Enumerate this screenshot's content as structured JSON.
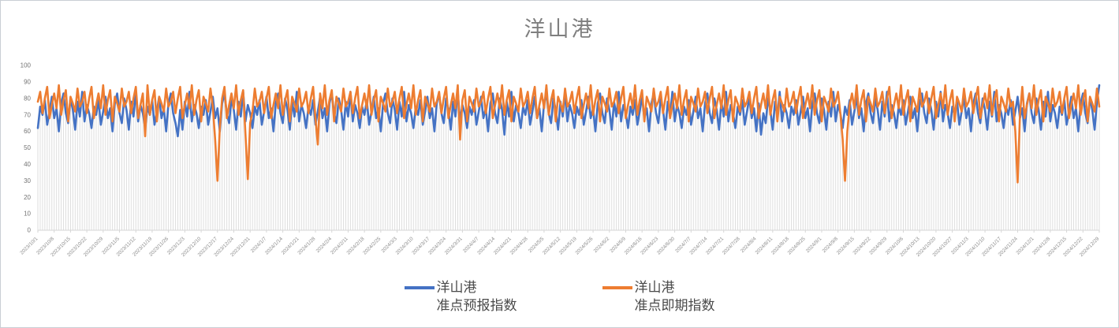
{
  "chart_data": {
    "type": "line",
    "title": "洋山港",
    "xlabel": "",
    "ylabel": "",
    "ylim": [
      0,
      100
    ],
    "yticks": [
      0,
      10,
      20,
      30,
      40,
      50,
      60,
      70,
      80,
      90,
      100
    ],
    "grid": false,
    "legend_position": "bottom",
    "x_start_date": "2023/10/1",
    "x_end_date": "2024/12/29",
    "x_frequency": "daily",
    "x_tick_labels": [
      "2023/10/1",
      "2023/10/8",
      "2023/10/15",
      "2023/10/22",
      "2023/10/29",
      "2023/11/5",
      "2023/11/12",
      "2023/11/19",
      "2023/11/26",
      "2023/12/3",
      "2023/12/10",
      "2023/12/17",
      "2023/12/24",
      "2023/12/31",
      "2024/1/7",
      "2024/1/14",
      "2024/1/21",
      "2024/1/28",
      "2024/2/4",
      "2024/2/11",
      "2024/2/18",
      "2024/2/25",
      "2024/3/3",
      "2024/3/10",
      "2024/3/17",
      "2024/3/24",
      "2024/3/31",
      "2024/4/7",
      "2024/4/14",
      "2024/4/21",
      "2024/4/28",
      "2024/5/5",
      "2024/5/12",
      "2024/5/19",
      "2024/5/26",
      "2024/6/2",
      "2024/6/9",
      "2024/6/16",
      "2024/6/23",
      "2024/6/30",
      "2024/7/7",
      "2024/7/14",
      "2024/7/21",
      "2024/7/28",
      "2024/8/4",
      "2024/8/11",
      "2024/8/18",
      "2024/8/25",
      "2024/9/1",
      "2024/9/8",
      "2024/9/15",
      "2024/9/22",
      "2024/9/29",
      "2024/10/6",
      "2024/10/13",
      "2024/10/20",
      "2024/10/27",
      "2024/11/3",
      "2024/11/10",
      "2024/11/17",
      "2024/11/24",
      "2024/12/1",
      "2024/12/8",
      "2024/12/15",
      "2024/12/22",
      "2024/12/29"
    ],
    "x_tick_interval_days": 7,
    "series": [
      {
        "name": "洋山港准点预报指数",
        "color": "#4472C4",
        "values": [
          62,
          75,
          70,
          79,
          64,
          72,
          81,
          68,
          74,
          60,
          77,
          83,
          71,
          65,
          80,
          73,
          61,
          78,
          69,
          84,
          66,
          76,
          71,
          62,
          75,
          70,
          79,
          64,
          72,
          81,
          68,
          74,
          60,
          77,
          83,
          71,
          65,
          80,
          73,
          61,
          78,
          69,
          84,
          66,
          76,
          71,
          62,
          75,
          70,
          79,
          64,
          72,
          81,
          68,
          74,
          60,
          77,
          83,
          71,
          65,
          57,
          73,
          61,
          78,
          69,
          84,
          66,
          76,
          71,
          62,
          75,
          70,
          79,
          64,
          72,
          81,
          68,
          74,
          60,
          77,
          83,
          71,
          65,
          80,
          73,
          61,
          78,
          69,
          84,
          66,
          76,
          71,
          62,
          75,
          70,
          79,
          64,
          72,
          81,
          68,
          74,
          60,
          77,
          83,
          71,
          65,
          80,
          73,
          61,
          78,
          69,
          84,
          66,
          76,
          71,
          62,
          75,
          70,
          79,
          64,
          72,
          81,
          68,
          74,
          60,
          77,
          83,
          71,
          65,
          80,
          73,
          61,
          78,
          69,
          84,
          66,
          76,
          71,
          62,
          75,
          70,
          79,
          64,
          72,
          81,
          68,
          74,
          60,
          77,
          83,
          71,
          65,
          80,
          73,
          61,
          78,
          69,
          84,
          66,
          76,
          71,
          62,
          75,
          70,
          79,
          64,
          72,
          81,
          68,
          74,
          60,
          77,
          83,
          71,
          65,
          80,
          73,
          61,
          78,
          69,
          84,
          66,
          76,
          71,
          62,
          75,
          70,
          79,
          64,
          72,
          81,
          68,
          74,
          60,
          77,
          83,
          71,
          65,
          80,
          73,
          58,
          78,
          69,
          84,
          66,
          76,
          71,
          62,
          75,
          70,
          79,
          64,
          72,
          81,
          68,
          74,
          60,
          77,
          83,
          71,
          65,
          80,
          73,
          61,
          78,
          69,
          84,
          66,
          76,
          71,
          62,
          75,
          70,
          79,
          64,
          72,
          81,
          68,
          74,
          60,
          77,
          83,
          71,
          65,
          80,
          73,
          61,
          78,
          69,
          84,
          66,
          76,
          71,
          62,
          75,
          70,
          79,
          64,
          72,
          81,
          68,
          74,
          60,
          77,
          83,
          71,
          65,
          80,
          73,
          61,
          78,
          69,
          84,
          66,
          76,
          71,
          62,
          75,
          70,
          79,
          64,
          72,
          81,
          68,
          74,
          60,
          77,
          83,
          71,
          65,
          80,
          73,
          61,
          78,
          69,
          84,
          66,
          76,
          71,
          62,
          75,
          70,
          79,
          64,
          72,
          81,
          68,
          74,
          60,
          77,
          58,
          71,
          65,
          80,
          73,
          61,
          78,
          69,
          84,
          66,
          76,
          71,
          62,
          75,
          70,
          79,
          64,
          72,
          81,
          68,
          74,
          60,
          77,
          83,
          71,
          65,
          80,
          73,
          61,
          78,
          69,
          84,
          66,
          76,
          71,
          62,
          75,
          70,
          79,
          64,
          72,
          81,
          68,
          74,
          60,
          77,
          83,
          71,
          65,
          80,
          73,
          61,
          78,
          69,
          84,
          66,
          76,
          71,
          62,
          75,
          70,
          79,
          64,
          72,
          81,
          68,
          74,
          60,
          77,
          83,
          71,
          65,
          80,
          73,
          61,
          78,
          69,
          84,
          66,
          76,
          71,
          62,
          75,
          70,
          79,
          64,
          72,
          81,
          68,
          74,
          60,
          77,
          83,
          71,
          65,
          80,
          73,
          61,
          78,
          69,
          84,
          66,
          76,
          71,
          62,
          75,
          70,
          79,
          64,
          72,
          81,
          68,
          74,
          60,
          77,
          83,
          71,
          65,
          80,
          73,
          61,
          78,
          69,
          84,
          66,
          76,
          71,
          62,
          75,
          70,
          79,
          64,
          72,
          81,
          68,
          74,
          60,
          77,
          83,
          71,
          65,
          80,
          73,
          61,
          78,
          88
        ]
      },
      {
        "name": "洋山港准点即期指数",
        "color": "#ED7D31",
        "values": [
          78,
          84,
          71,
          80,
          87,
          68,
          76,
          83,
          74,
          88,
          70,
          79,
          85,
          66,
          81,
          77,
          72,
          86,
          75,
          78,
          84,
          71,
          80,
          87,
          68,
          76,
          83,
          74,
          88,
          70,
          79,
          85,
          66,
          81,
          77,
          72,
          86,
          75,
          78,
          84,
          71,
          80,
          87,
          68,
          76,
          83,
          57,
          88,
          70,
          79,
          85,
          66,
          81,
          77,
          72,
          86,
          75,
          78,
          84,
          71,
          80,
          87,
          68,
          76,
          83,
          74,
          88,
          70,
          79,
          85,
          66,
          81,
          77,
          72,
          86,
          75,
          55,
          30,
          62,
          80,
          87,
          68,
          76,
          83,
          74,
          88,
          70,
          79,
          85,
          58,
          31,
          65,
          72,
          86,
          75,
          78,
          84,
          71,
          80,
          87,
          68,
          76,
          83,
          74,
          88,
          70,
          79,
          85,
          66,
          81,
          77,
          72,
          86,
          75,
          78,
          84,
          71,
          80,
          87,
          68,
          52,
          83,
          74,
          88,
          70,
          79,
          85,
          66,
          81,
          77,
          72,
          86,
          75,
          78,
          84,
          71,
          80,
          87,
          68,
          76,
          83,
          74,
          88,
          70,
          79,
          85,
          66,
          81,
          77,
          72,
          86,
          75,
          78,
          84,
          71,
          80,
          87,
          68,
          76,
          83,
          74,
          88,
          70,
          79,
          85,
          66,
          81,
          77,
          72,
          86,
          75,
          78,
          84,
          71,
          80,
          87,
          68,
          76,
          83,
          74,
          88,
          55,
          79,
          85,
          66,
          81,
          77,
          72,
          86,
          75,
          78,
          84,
          71,
          80,
          87,
          68,
          76,
          83,
          74,
          88,
          70,
          79,
          85,
          66,
          81,
          77,
          72,
          86,
          75,
          78,
          84,
          71,
          80,
          87,
          68,
          76,
          83,
          74,
          88,
          70,
          79,
          85,
          66,
          81,
          77,
          72,
          86,
          75,
          78,
          84,
          71,
          80,
          87,
          68,
          76,
          83,
          74,
          88,
          70,
          79,
          85,
          66,
          81,
          77,
          72,
          86,
          75,
          78,
          84,
          71,
          80,
          87,
          68,
          76,
          83,
          74,
          88,
          70,
          79,
          85,
          66,
          81,
          77,
          72,
          86,
          75,
          78,
          84,
          71,
          80,
          87,
          68,
          76,
          83,
          74,
          88,
          70,
          79,
          85,
          66,
          81,
          77,
          72,
          86,
          75,
          78,
          84,
          71,
          80,
          87,
          68,
          76,
          83,
          74,
          88,
          70,
          79,
          85,
          66,
          81,
          77,
          72,
          86,
          75,
          78,
          84,
          71,
          80,
          87,
          68,
          76,
          83,
          74,
          88,
          70,
          79,
          85,
          66,
          81,
          77,
          72,
          86,
          75,
          78,
          84,
          71,
          80,
          87,
          68,
          76,
          83,
          74,
          88,
          70,
          79,
          85,
          66,
          81,
          77,
          72,
          86,
          75,
          78,
          84,
          71,
          55,
          30,
          60,
          76,
          83,
          74,
          88,
          70,
          79,
          85,
          66,
          81,
          77,
          72,
          86,
          75,
          78,
          84,
          71,
          80,
          87,
          68,
          76,
          83,
          74,
          88,
          70,
          79,
          85,
          66,
          81,
          77,
          72,
          86,
          75,
          78,
          84,
          71,
          80,
          87,
          68,
          76,
          83,
          74,
          88,
          70,
          79,
          85,
          66,
          81,
          77,
          72,
          86,
          75,
          78,
          84,
          71,
          80,
          87,
          68,
          76,
          83,
          74,
          88,
          70,
          79,
          85,
          66,
          81,
          77,
          72,
          86,
          75,
          78,
          60,
          29,
          70,
          87,
          68,
          76,
          83,
          74,
          88,
          70,
          79,
          85,
          66,
          81,
          77,
          72,
          86,
          75,
          78,
          84,
          71,
          80,
          87,
          68,
          76,
          83,
          74,
          88,
          70,
          79,
          85,
          66,
          81,
          77,
          72,
          86,
          75
        ]
      }
    ],
    "annotations": [
      "orange series dips to ~30 around 2023/12/17 and 2023/12/30",
      "orange series dips to ~52 around 2024/1/29",
      "orange series dips to ~30 around 2024/9/12",
      "orange series dips to ~29 around 2024/11/24"
    ]
  },
  "legend": {
    "entries": [
      {
        "line1": "洋山港",
        "line2": "准点预报指数",
        "color": "#4472C4"
      },
      {
        "line1": "洋山港",
        "line2": "准点即期指数",
        "color": "#ED7D31"
      }
    ]
  }
}
